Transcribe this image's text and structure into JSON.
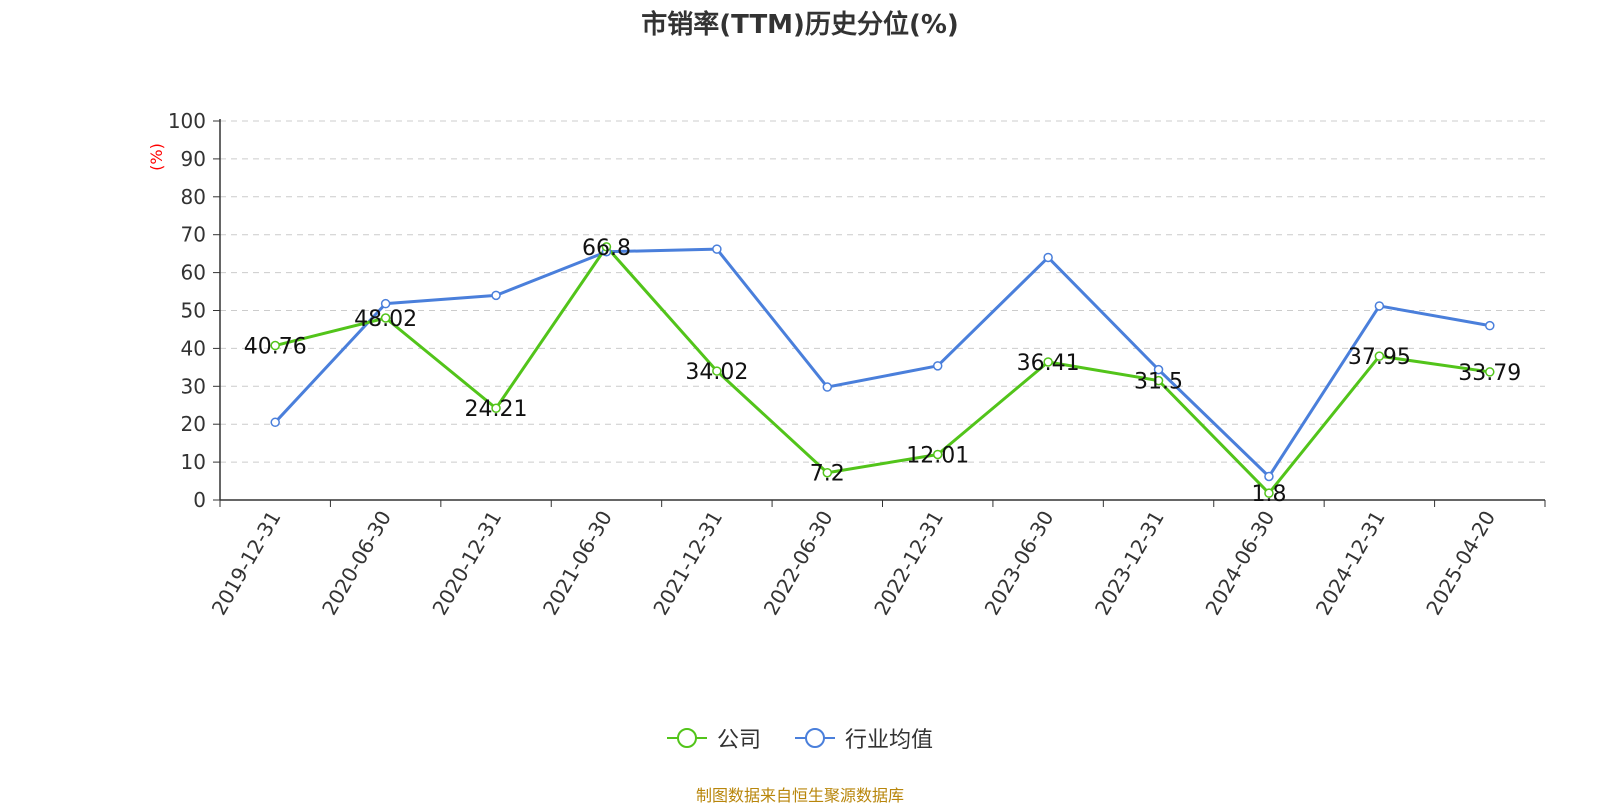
{
  "chart_data": {
    "type": "line",
    "title": "市销率(TTM)历史分位(%)",
    "ylabel": "(%)",
    "xlabel": "",
    "ylim": [
      0,
      100
    ],
    "yticks": [
      "0",
      "10",
      "20",
      "30",
      "40",
      "50",
      "60",
      "70",
      "80",
      "90",
      "100"
    ],
    "categories": [
      "2019-12-31",
      "2020-06-30",
      "2020-12-31",
      "2021-06-30",
      "2021-12-31",
      "2022-06-30",
      "2022-12-31",
      "2023-06-30",
      "2023-12-31",
      "2024-06-30",
      "2024-12-31",
      "2025-04-20"
    ],
    "series": [
      {
        "name": "公司",
        "color": "#52c41a",
        "values": [
          40.76,
          48.02,
          24.21,
          66.8,
          34.02,
          7.2,
          12.01,
          36.41,
          31.5,
          1.8,
          37.95,
          33.79
        ],
        "labels": [
          "40.76",
          "48.02",
          "24.21",
          "66.8",
          "34.02",
          "7.2",
          "12.01",
          "36.41",
          "31.5",
          "1.8",
          "37.95",
          "33.79"
        ]
      },
      {
        "name": "行业均值",
        "color": "#4a7fdb",
        "values": [
          20.5,
          51.8,
          54.0,
          65.5,
          66.2,
          29.8,
          35.4,
          64.0,
          34.4,
          6.2,
          51.2,
          46.0
        ]
      }
    ],
    "grid": true,
    "legend_position": "bottom"
  },
  "source_note": "制图数据来自恒生聚源数据库"
}
